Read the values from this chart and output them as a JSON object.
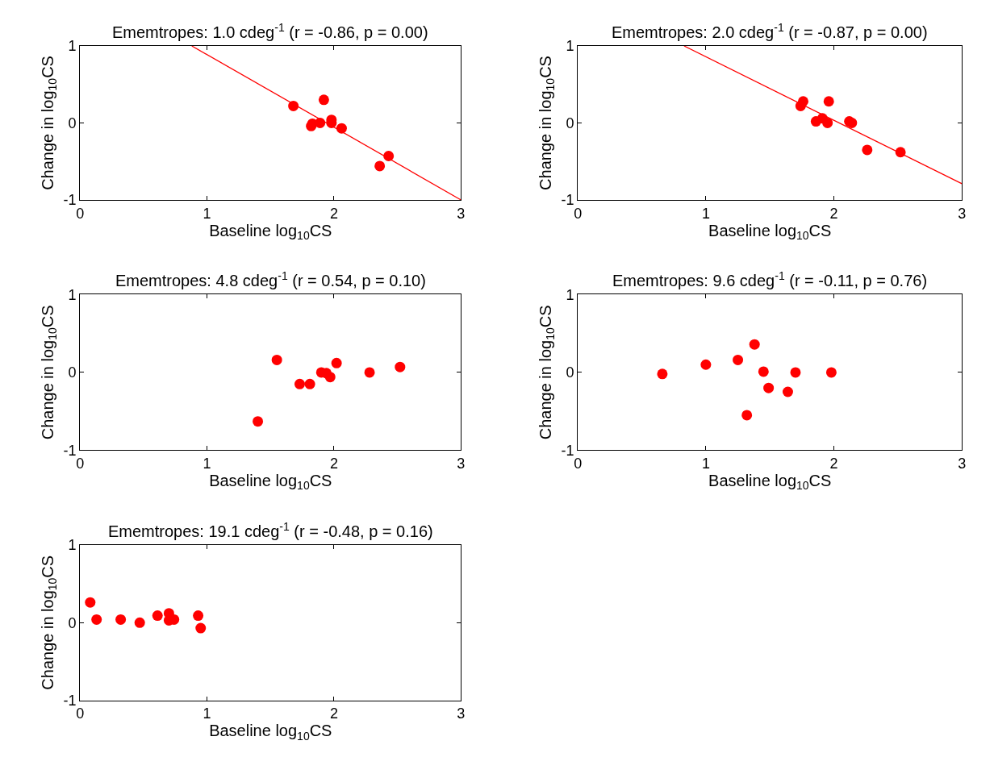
{
  "chart_data": [
    {
      "type": "scatter",
      "title": "Ememtropes: 1.0 cdeg$^{-1}$ (r = -0.86, p = 0.00)",
      "xlabel": "Baseline log$_{10}$CS",
      "ylabel": "Change in log$_{10}$CS",
      "xlim": [
        0,
        3
      ],
      "ylim": [
        -1,
        1
      ],
      "xticks": [
        0,
        1,
        2,
        3
      ],
      "yticks": [
        -1,
        0,
        1
      ],
      "marker": "circle",
      "series": [
        {
          "color": "#ff0000",
          "x": [
            1.68,
            1.92,
            1.82,
            1.83,
            1.89,
            1.98,
            1.98,
            2.06,
            2.43,
            2.36
          ],
          "values": [
            0.22,
            0.3,
            -0.04,
            -0.01,
            0.0,
            0.04,
            0.0,
            -0.07,
            -0.43,
            -0.56
          ]
        },
        {
          "type": "line",
          "marker": "none",
          "color": "#ff0000",
          "x": [
            0.88,
            3
          ],
          "values": [
            1,
            -1
          ]
        }
      ]
    },
    {
      "type": "scatter",
      "title": "Ememtropes: 2.0 cdeg$^{-1}$ (r = -0.87, p = 0.00)",
      "xlabel": "Baseline log$_{10}$CS",
      "ylabel": "Change in log$_{10}$CS",
      "xlim": [
        0,
        3
      ],
      "ylim": [
        -1,
        1
      ],
      "xticks": [
        0,
        1,
        2,
        3
      ],
      "yticks": [
        -1,
        0,
        1
      ],
      "marker": "circle",
      "series": [
        {
          "color": "#ff0000",
          "x": [
            1.74,
            1.76,
            1.96,
            1.86,
            1.91,
            1.95,
            2.12,
            2.14,
            2.26,
            2.52
          ],
          "values": [
            0.22,
            0.28,
            0.28,
            0.02,
            0.06,
            0.0,
            0.02,
            0.0,
            -0.35,
            -0.38
          ]
        },
        {
          "type": "line",
          "marker": "none",
          "color": "#ff0000",
          "x": [
            0.83,
            3
          ],
          "values": [
            1,
            -0.79
          ]
        }
      ]
    },
    {
      "type": "scatter",
      "title": "Ememtropes: 4.8 cdeg$^{-1}$ (r = 0.54, p = 0.10)",
      "xlabel": "Baseline log$_{10}$CS",
      "ylabel": "Change in log$_{10}$CS",
      "xlim": [
        0,
        3
      ],
      "ylim": [
        -1,
        1
      ],
      "xticks": [
        0,
        1,
        2,
        3
      ],
      "yticks": [
        -1,
        0,
        1
      ],
      "marker": "circle",
      "series": [
        {
          "color": "#ff0000",
          "x": [
            1.55,
            1.4,
            1.73,
            1.81,
            1.9,
            1.94,
            1.97,
            2.02,
            2.28,
            2.52
          ],
          "values": [
            0.16,
            -0.63,
            -0.15,
            -0.15,
            0.0,
            -0.01,
            -0.06,
            0.12,
            0.0,
            0.07
          ]
        }
      ]
    },
    {
      "type": "scatter",
      "title": "Ememtropes: 9.6 cdeg$^{-1}$ (r = -0.11, p = 0.76)",
      "xlabel": "Baseline log$_{10}$CS",
      "ylabel": "Change in log$_{10}$CS",
      "xlim": [
        0,
        3
      ],
      "ylim": [
        -1,
        1
      ],
      "xticks": [
        0,
        1,
        2,
        3
      ],
      "yticks": [
        -1,
        0,
        1
      ],
      "marker": "circle",
      "series": [
        {
          "color": "#ff0000",
          "x": [
            0.66,
            1.0,
            1.25,
            1.38,
            1.45,
            1.49,
            1.64,
            1.32,
            1.7,
            1.98
          ],
          "values": [
            -0.02,
            0.1,
            0.16,
            0.36,
            0.01,
            -0.2,
            -0.25,
            -0.55,
            0.0,
            0.0
          ]
        }
      ]
    },
    {
      "type": "scatter",
      "title": "Ememtropes: 19.1 cdeg$^{-1}$ (r = -0.48, p = 0.16)",
      "xlabel": "Baseline log$_{10}$CS",
      "ylabel": "Change in log$_{10}$CS",
      "xlim": [
        0,
        3
      ],
      "ylim": [
        -1,
        1
      ],
      "xticks": [
        0,
        1,
        2,
        3
      ],
      "yticks": [
        -1,
        0,
        1
      ],
      "marker": "circle",
      "series": [
        {
          "color": "#ff0000",
          "x": [
            0.08,
            0.13,
            0.32,
            0.47,
            0.61,
            0.7,
            0.7,
            0.74,
            0.93,
            0.95
          ],
          "values": [
            0.26,
            0.04,
            0.04,
            0.0,
            0.09,
            0.12,
            0.03,
            0.04,
            0.09,
            -0.07
          ]
        }
      ]
    }
  ]
}
